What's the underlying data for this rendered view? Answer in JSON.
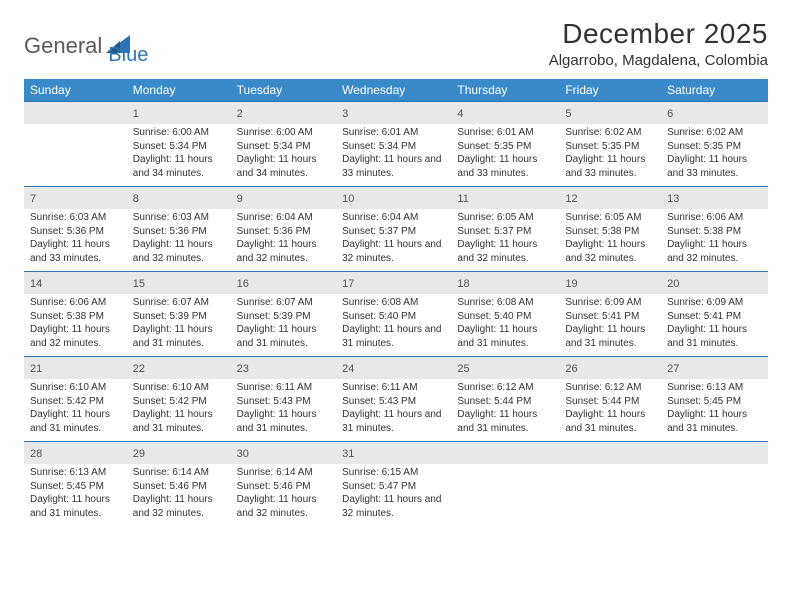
{
  "logo": {
    "word1": "General",
    "word2": "Blue"
  },
  "title": "December 2025",
  "location": "Algarrobo, Magdalena, Colombia",
  "colors": {
    "header_bg": "#3a8ac9",
    "header_text": "#ffffff",
    "daynum_bg": "#e8e8e8",
    "rule": "#2e75b6",
    "logo_gray": "#5a5a5a",
    "logo_blue": "#2e75b6",
    "text": "#333333"
  },
  "fonts": {
    "title_size_pt": 21,
    "location_size_pt": 11,
    "header_size_pt": 9,
    "body_size_pt": 7.5
  },
  "day_headers": [
    "Sunday",
    "Monday",
    "Tuesday",
    "Wednesday",
    "Thursday",
    "Friday",
    "Saturday"
  ],
  "weeks": [
    [
      {
        "n": "",
        "sunrise": "",
        "sunset": "",
        "daylight": ""
      },
      {
        "n": "1",
        "sunrise": "Sunrise: 6:00 AM",
        "sunset": "Sunset: 5:34 PM",
        "daylight": "Daylight: 11 hours and 34 minutes."
      },
      {
        "n": "2",
        "sunrise": "Sunrise: 6:00 AM",
        "sunset": "Sunset: 5:34 PM",
        "daylight": "Daylight: 11 hours and 34 minutes."
      },
      {
        "n": "3",
        "sunrise": "Sunrise: 6:01 AM",
        "sunset": "Sunset: 5:34 PM",
        "daylight": "Daylight: 11 hours and 33 minutes."
      },
      {
        "n": "4",
        "sunrise": "Sunrise: 6:01 AM",
        "sunset": "Sunset: 5:35 PM",
        "daylight": "Daylight: 11 hours and 33 minutes."
      },
      {
        "n": "5",
        "sunrise": "Sunrise: 6:02 AM",
        "sunset": "Sunset: 5:35 PM",
        "daylight": "Daylight: 11 hours and 33 minutes."
      },
      {
        "n": "6",
        "sunrise": "Sunrise: 6:02 AM",
        "sunset": "Sunset: 5:35 PM",
        "daylight": "Daylight: 11 hours and 33 minutes."
      }
    ],
    [
      {
        "n": "7",
        "sunrise": "Sunrise: 6:03 AM",
        "sunset": "Sunset: 5:36 PM",
        "daylight": "Daylight: 11 hours and 33 minutes."
      },
      {
        "n": "8",
        "sunrise": "Sunrise: 6:03 AM",
        "sunset": "Sunset: 5:36 PM",
        "daylight": "Daylight: 11 hours and 32 minutes."
      },
      {
        "n": "9",
        "sunrise": "Sunrise: 6:04 AM",
        "sunset": "Sunset: 5:36 PM",
        "daylight": "Daylight: 11 hours and 32 minutes."
      },
      {
        "n": "10",
        "sunrise": "Sunrise: 6:04 AM",
        "sunset": "Sunset: 5:37 PM",
        "daylight": "Daylight: 11 hours and 32 minutes."
      },
      {
        "n": "11",
        "sunrise": "Sunrise: 6:05 AM",
        "sunset": "Sunset: 5:37 PM",
        "daylight": "Daylight: 11 hours and 32 minutes."
      },
      {
        "n": "12",
        "sunrise": "Sunrise: 6:05 AM",
        "sunset": "Sunset: 5:38 PM",
        "daylight": "Daylight: 11 hours and 32 minutes."
      },
      {
        "n": "13",
        "sunrise": "Sunrise: 6:06 AM",
        "sunset": "Sunset: 5:38 PM",
        "daylight": "Daylight: 11 hours and 32 minutes."
      }
    ],
    [
      {
        "n": "14",
        "sunrise": "Sunrise: 6:06 AM",
        "sunset": "Sunset: 5:38 PM",
        "daylight": "Daylight: 11 hours and 32 minutes."
      },
      {
        "n": "15",
        "sunrise": "Sunrise: 6:07 AM",
        "sunset": "Sunset: 5:39 PM",
        "daylight": "Daylight: 11 hours and 31 minutes."
      },
      {
        "n": "16",
        "sunrise": "Sunrise: 6:07 AM",
        "sunset": "Sunset: 5:39 PM",
        "daylight": "Daylight: 11 hours and 31 minutes."
      },
      {
        "n": "17",
        "sunrise": "Sunrise: 6:08 AM",
        "sunset": "Sunset: 5:40 PM",
        "daylight": "Daylight: 11 hours and 31 minutes."
      },
      {
        "n": "18",
        "sunrise": "Sunrise: 6:08 AM",
        "sunset": "Sunset: 5:40 PM",
        "daylight": "Daylight: 11 hours and 31 minutes."
      },
      {
        "n": "19",
        "sunrise": "Sunrise: 6:09 AM",
        "sunset": "Sunset: 5:41 PM",
        "daylight": "Daylight: 11 hours and 31 minutes."
      },
      {
        "n": "20",
        "sunrise": "Sunrise: 6:09 AM",
        "sunset": "Sunset: 5:41 PM",
        "daylight": "Daylight: 11 hours and 31 minutes."
      }
    ],
    [
      {
        "n": "21",
        "sunrise": "Sunrise: 6:10 AM",
        "sunset": "Sunset: 5:42 PM",
        "daylight": "Daylight: 11 hours and 31 minutes."
      },
      {
        "n": "22",
        "sunrise": "Sunrise: 6:10 AM",
        "sunset": "Sunset: 5:42 PM",
        "daylight": "Daylight: 11 hours and 31 minutes."
      },
      {
        "n": "23",
        "sunrise": "Sunrise: 6:11 AM",
        "sunset": "Sunset: 5:43 PM",
        "daylight": "Daylight: 11 hours and 31 minutes."
      },
      {
        "n": "24",
        "sunrise": "Sunrise: 6:11 AM",
        "sunset": "Sunset: 5:43 PM",
        "daylight": "Daylight: 11 hours and 31 minutes."
      },
      {
        "n": "25",
        "sunrise": "Sunrise: 6:12 AM",
        "sunset": "Sunset: 5:44 PM",
        "daylight": "Daylight: 11 hours and 31 minutes."
      },
      {
        "n": "26",
        "sunrise": "Sunrise: 6:12 AM",
        "sunset": "Sunset: 5:44 PM",
        "daylight": "Daylight: 11 hours and 31 minutes."
      },
      {
        "n": "27",
        "sunrise": "Sunrise: 6:13 AM",
        "sunset": "Sunset: 5:45 PM",
        "daylight": "Daylight: 11 hours and 31 minutes."
      }
    ],
    [
      {
        "n": "28",
        "sunrise": "Sunrise: 6:13 AM",
        "sunset": "Sunset: 5:45 PM",
        "daylight": "Daylight: 11 hours and 31 minutes."
      },
      {
        "n": "29",
        "sunrise": "Sunrise: 6:14 AM",
        "sunset": "Sunset: 5:46 PM",
        "daylight": "Daylight: 11 hours and 32 minutes."
      },
      {
        "n": "30",
        "sunrise": "Sunrise: 6:14 AM",
        "sunset": "Sunset: 5:46 PM",
        "daylight": "Daylight: 11 hours and 32 minutes."
      },
      {
        "n": "31",
        "sunrise": "Sunrise: 6:15 AM",
        "sunset": "Sunset: 5:47 PM",
        "daylight": "Daylight: 11 hours and 32 minutes."
      },
      {
        "n": "",
        "sunrise": "",
        "sunset": "",
        "daylight": ""
      },
      {
        "n": "",
        "sunrise": "",
        "sunset": "",
        "daylight": ""
      },
      {
        "n": "",
        "sunrise": "",
        "sunset": "",
        "daylight": ""
      }
    ]
  ]
}
